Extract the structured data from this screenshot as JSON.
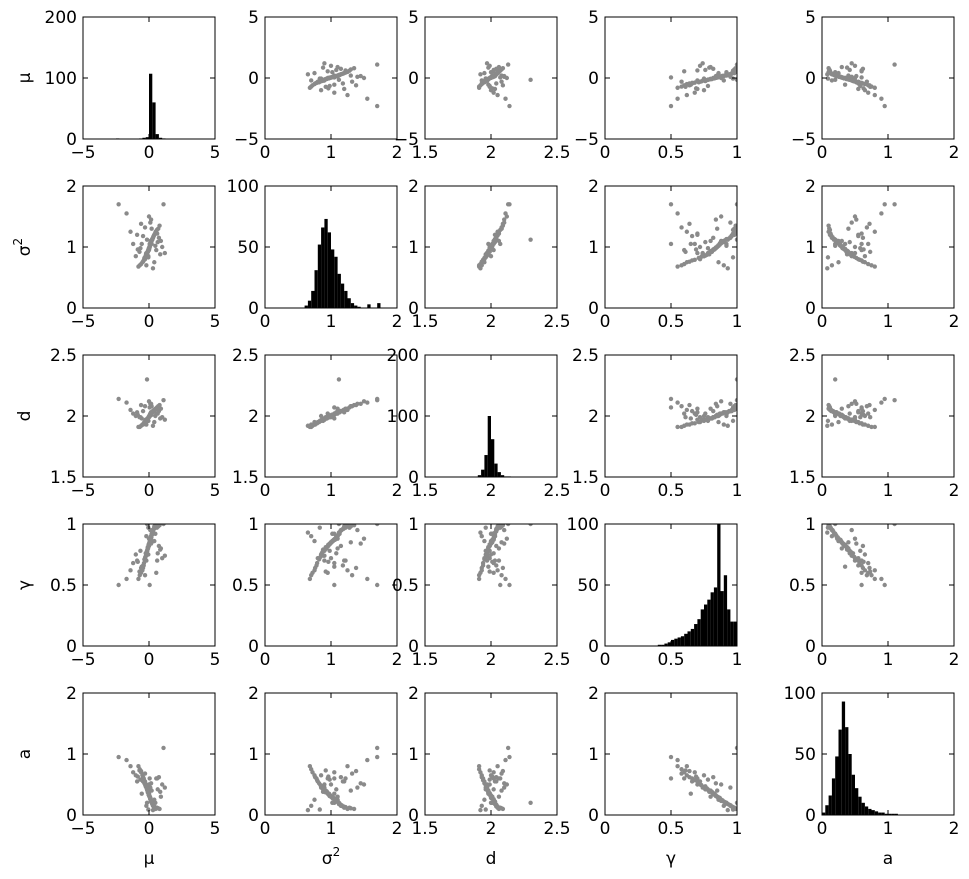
{
  "chart_data": {
    "type": "scatter",
    "title": "",
    "layout": "scatterplot-matrix",
    "variables": [
      "μ",
      "σ2",
      "d",
      "γ",
      "a"
    ],
    "variable_labels": [
      {
        "base": "μ",
        "sup": ""
      },
      {
        "base": "σ",
        "sup": "2"
      },
      {
        "base": "d",
        "sup": ""
      },
      {
        "base": "γ",
        "sup": ""
      },
      {
        "base": "a",
        "sup": ""
      }
    ],
    "ranges": [
      [
        -5,
        5
      ],
      [
        0,
        2
      ],
      [
        1.5,
        2.5
      ],
      [
        0,
        1
      ],
      [
        0,
        2
      ]
    ],
    "ticks": [
      [
        "−5",
        "0",
        "5"
      ],
      [
        "0",
        "1",
        "2"
      ],
      [
        "1.5",
        "2",
        "2.5"
      ],
      [
        "0",
        "0.5",
        "1"
      ],
      [
        "0",
        "1",
        "2"
      ]
    ],
    "tick_values": [
      [
        -5,
        0,
        5
      ],
      [
        0,
        1,
        2
      ],
      [
        1.5,
        2,
        2.5
      ],
      [
        0,
        0.5,
        1
      ],
      [
        0,
        1,
        2
      ]
    ],
    "histogram_ylims": [
      [
        0,
        200
      ],
      [
        0,
        100
      ],
      [
        0,
        200
      ],
      [
        0,
        100
      ],
      [
        0,
        100
      ]
    ],
    "histogram_yticks": [
      [
        0,
        100,
        200
      ],
      [
        0,
        50,
        100
      ],
      [
        0,
        100,
        200
      ],
      [
        0,
        50,
        100
      ],
      [
        0,
        50,
        100
      ]
    ],
    "grid": false,
    "colors": {
      "points": "#8a8a8a",
      "bars": "#000000",
      "axes": "#000000",
      "background": "#ffffff"
    },
    "histograms": [
      {
        "variable": "μ",
        "bin_edges": [
          -2.5,
          -2.25,
          -2.0,
          -1.75,
          -1.5,
          -1.25,
          -1.0,
          -0.75,
          -0.5,
          -0.25,
          0.0,
          0.25,
          0.5,
          0.75,
          1.0,
          1.25,
          1.5,
          1.75,
          2.0,
          2.25,
          2.5
        ],
        "counts": [
          1,
          0,
          0,
          0,
          0,
          0,
          0,
          1,
          2,
          3,
          107,
          60,
          8,
          2,
          1,
          0,
          0,
          0,
          0,
          0
        ]
      },
      {
        "variable": "σ2",
        "bin_edges": [
          0.6,
          0.65,
          0.7,
          0.75,
          0.8,
          0.85,
          0.9,
          0.95,
          1.0,
          1.05,
          1.1,
          1.15,
          1.2,
          1.25,
          1.3,
          1.35,
          1.4,
          1.45,
          1.5,
          1.55,
          1.6,
          1.65,
          1.7,
          1.75
        ],
        "counts": [
          2,
          6,
          14,
          31,
          52,
          66,
          73,
          62,
          48,
          42,
          28,
          20,
          14,
          8,
          4,
          2,
          1,
          0,
          0,
          3,
          0,
          0,
          4
        ]
      },
      {
        "variable": "d",
        "bin_edges": [
          1.9,
          1.925,
          1.95,
          1.975,
          2.0,
          2.025,
          2.05,
          2.075,
          2.1,
          2.125,
          2.15
        ],
        "counts": [
          3,
          12,
          36,
          100,
          62,
          22,
          8,
          3,
          1,
          1
        ]
      },
      {
        "variable": "γ",
        "bin_edges": [
          0.4,
          0.425,
          0.45,
          0.475,
          0.5,
          0.525,
          0.55,
          0.575,
          0.6,
          0.625,
          0.65,
          0.675,
          0.7,
          0.725,
          0.75,
          0.775,
          0.8,
          0.825,
          0.85,
          0.875,
          0.9,
          0.925,
          0.95,
          0.975,
          1.0
        ],
        "counts": [
          1,
          1,
          2,
          3,
          5,
          6,
          7,
          8,
          10,
          12,
          14,
          18,
          22,
          30,
          34,
          38,
          44,
          48,
          100,
          45,
          58,
          30,
          20,
          20
        ]
      },
      {
        "variable": "a",
        "bin_edges": [
          0.0,
          0.05,
          0.1,
          0.15,
          0.2,
          0.25,
          0.3,
          0.35,
          0.4,
          0.45,
          0.5,
          0.55,
          0.6,
          0.65,
          0.7,
          0.75,
          0.8,
          0.85,
          0.9,
          0.95,
          1.0,
          1.05,
          1.1,
          1.15
        ],
        "counts": [
          2,
          8,
          16,
          30,
          48,
          70,
          93,
          72,
          50,
          33,
          22,
          15,
          10,
          7,
          5,
          4,
          3,
          2,
          2,
          1,
          1,
          1,
          1
        ]
      }
    ],
    "samples": [
      [
        0.05,
        1.0,
        2.0,
        0.85,
        0.3
      ],
      [
        -0.1,
        0.92,
        1.98,
        0.8,
        0.4
      ],
      [
        0.12,
        1.1,
        2.02,
        0.88,
        0.25
      ],
      [
        -0.05,
        0.85,
        1.96,
        0.75,
        0.45
      ],
      [
        0.2,
        1.05,
        2.01,
        0.92,
        0.2
      ],
      [
        0.0,
        0.97,
        1.99,
        0.83,
        0.35
      ],
      [
        -0.2,
        0.9,
        1.97,
        0.7,
        0.5
      ],
      [
        0.3,
        1.15,
        2.04,
        0.95,
        0.15
      ],
      [
        0.08,
        1.02,
        2.0,
        0.86,
        0.28
      ],
      [
        -0.15,
        0.88,
        1.96,
        0.78,
        0.42
      ],
      [
        0.15,
        1.08,
        2.03,
        0.9,
        0.22
      ],
      [
        -0.3,
        0.8,
        1.95,
        0.72,
        0.55
      ],
      [
        0.02,
        0.99,
        2.0,
        0.84,
        0.32
      ],
      [
        0.4,
        1.2,
        2.05,
        0.98,
        0.12
      ],
      [
        -0.08,
        0.94,
        1.98,
        0.81,
        0.38
      ],
      [
        0.1,
        1.06,
        2.02,
        0.87,
        0.26
      ],
      [
        -0.4,
        0.78,
        1.94,
        0.66,
        0.6
      ],
      [
        0.25,
        1.12,
        2.03,
        0.93,
        0.18
      ],
      [
        0.06,
        1.01,
        2.01,
        0.85,
        0.3
      ],
      [
        -0.25,
        0.86,
        1.97,
        0.76,
        0.47
      ],
      [
        0.35,
        1.18,
        2.04,
        0.96,
        0.14
      ],
      [
        -0.12,
        0.91,
        1.98,
        0.79,
        0.4
      ],
      [
        0.18,
        1.09,
        2.02,
        0.89,
        0.24
      ],
      [
        -0.02,
        0.96,
        1.99,
        0.82,
        0.34
      ],
      [
        0.5,
        1.25,
        2.06,
        0.99,
        0.1
      ],
      [
        -0.5,
        0.75,
        1.93,
        0.62,
        0.65
      ],
      [
        0.03,
        0.98,
        2.0,
        0.84,
        0.31
      ],
      [
        0.22,
        1.11,
        2.03,
        0.91,
        0.21
      ],
      [
        -0.18,
        0.87,
        1.97,
        0.77,
        0.44
      ],
      [
        0.6,
        1.28,
        2.07,
        0.97,
        0.12
      ],
      [
        -0.6,
        0.72,
        1.92,
        0.6,
        0.7
      ],
      [
        0.09,
        1.03,
        2.01,
        0.86,
        0.27
      ],
      [
        -0.07,
        0.93,
        1.98,
        0.8,
        0.39
      ],
      [
        0.28,
        1.14,
        2.04,
        0.94,
        0.17
      ],
      [
        -0.35,
        0.82,
        1.95,
        0.71,
        0.52
      ],
      [
        0.14,
        1.07,
        2.02,
        0.88,
        0.23
      ],
      [
        0.0,
        0.95,
        1.99,
        0.82,
        0.36
      ],
      [
        0.45,
        1.22,
        2.05,
        0.97,
        0.13
      ],
      [
        -0.45,
        0.76,
        1.93,
        0.64,
        0.62
      ],
      [
        0.11,
        1.04,
        2.01,
        0.87,
        0.28
      ],
      [
        -0.03,
        0.97,
        1.99,
        0.83,
        0.33
      ],
      [
        0.32,
        1.16,
        2.04,
        0.95,
        0.16
      ],
      [
        -0.22,
        0.89,
        1.97,
        0.74,
        0.46
      ],
      [
        0.7,
        1.3,
        2.08,
        0.98,
        0.11
      ],
      [
        -0.7,
        0.7,
        1.91,
        0.58,
        0.75
      ],
      [
        0.04,
        1.0,
        2.0,
        0.85,
        0.3
      ],
      [
        0.17,
        1.1,
        2.03,
        0.9,
        0.22
      ],
      [
        -0.13,
        0.9,
        1.97,
        0.78,
        0.41
      ],
      [
        0.8,
        1.35,
        2.09,
        0.99,
        0.1
      ],
      [
        -0.8,
        0.68,
        1.91,
        0.55,
        0.8
      ],
      [
        0.07,
        1.02,
        2.01,
        0.86,
        0.29
      ],
      [
        -0.09,
        0.92,
        1.98,
        0.81,
        0.37
      ],
      [
        0.24,
        1.13,
        2.03,
        0.92,
        0.19
      ],
      [
        -0.28,
        0.84,
        1.96,
        0.73,
        0.49
      ],
      [
        0.13,
        1.06,
        2.02,
        0.88,
        0.25
      ],
      [
        -0.01,
        0.96,
        1.99,
        0.83,
        0.34
      ],
      [
        0.38,
        1.19,
        2.05,
        0.96,
        0.14
      ],
      [
        -0.38,
        0.79,
        1.94,
        0.68,
        0.57
      ],
      [
        0.01,
        0.99,
        2.0,
        0.84,
        0.32
      ],
      [
        0.9,
        1.1,
        2.06,
        0.8,
        0.3
      ],
      [
        -0.9,
        1.2,
        2.03,
        0.7,
        0.55
      ],
      [
        0.55,
        0.95,
        2.02,
        0.6,
        0.6
      ],
      [
        -0.55,
        1.05,
        1.98,
        0.65,
        0.35
      ],
      [
        0.2,
        1.3,
        2.08,
        0.85,
        0.4
      ],
      [
        -0.2,
        0.7,
        1.93,
        0.9,
        0.15
      ],
      [
        0.1,
        1.4,
        2.1,
        0.95,
        0.45
      ],
      [
        -1.0,
        0.85,
        2.0,
        0.75,
        0.65
      ],
      [
        1.0,
        1.0,
        1.99,
        0.72,
        0.5
      ],
      [
        0.0,
        1.5,
        2.12,
        0.88,
        0.5
      ],
      [
        -1.2,
        1.05,
        2.02,
        0.68,
        0.7
      ],
      [
        -1.4,
        1.25,
        2.05,
        0.62,
        0.8
      ],
      [
        -1.7,
        1.55,
        2.11,
        0.55,
        0.9
      ],
      [
        -2.3,
        1.7,
        2.14,
        0.5,
        0.95
      ],
      [
        1.2,
        0.9,
        1.97,
        0.74,
        0.45
      ],
      [
        0.75,
        1.15,
        2.04,
        0.82,
        0.62
      ],
      [
        -0.65,
        0.98,
        1.99,
        0.78,
        0.58
      ],
      [
        0.4,
        0.75,
        1.95,
        0.86,
        0.25
      ],
      [
        -0.45,
        1.18,
        2.04,
        0.66,
        0.55
      ],
      [
        0.62,
        1.22,
        2.06,
        0.7,
        0.6
      ],
      [
        1.1,
        1.7,
        2.13,
        1.0,
        1.1
      ],
      [
        -0.15,
        1.12,
        2.3,
        1.0,
        0.2
      ],
      [
        0.05,
        1.05,
        2.07,
        0.5,
        0.6
      ],
      [
        0.3,
        0.65,
        1.92,
        0.93,
        0.08
      ],
      [
        -0.3,
        1.32,
        2.08,
        0.58,
        0.68
      ],
      [
        0.48,
        1.02,
        2.0,
        0.92,
        0.2
      ],
      [
        -0.6,
        1.38,
        2.09,
        0.64,
        0.72
      ],
      [
        0.85,
        0.88,
        1.98,
        0.79,
        0.38
      ],
      [
        -0.85,
        0.96,
        2.01,
        0.69,
        0.63
      ],
      [
        0.16,
        1.45,
        2.1,
        0.84,
        0.52
      ],
      [
        -0.05,
        0.83,
        1.96,
        0.97,
        0.09
      ],
      [
        0.66,
        1.08,
        2.02,
        0.76,
        0.42
      ],
      [
        -0.72,
        0.92,
        1.99,
        0.61,
        0.73
      ]
    ],
    "axis_labels": [
      {
        "base": "μ",
        "sup": ""
      },
      {
        "base": "σ",
        "sup": "2"
      },
      {
        "base": "d",
        "sup": ""
      },
      {
        "base": "γ",
        "sup": ""
      },
      {
        "base": "a",
        "sup": ""
      }
    ]
  }
}
